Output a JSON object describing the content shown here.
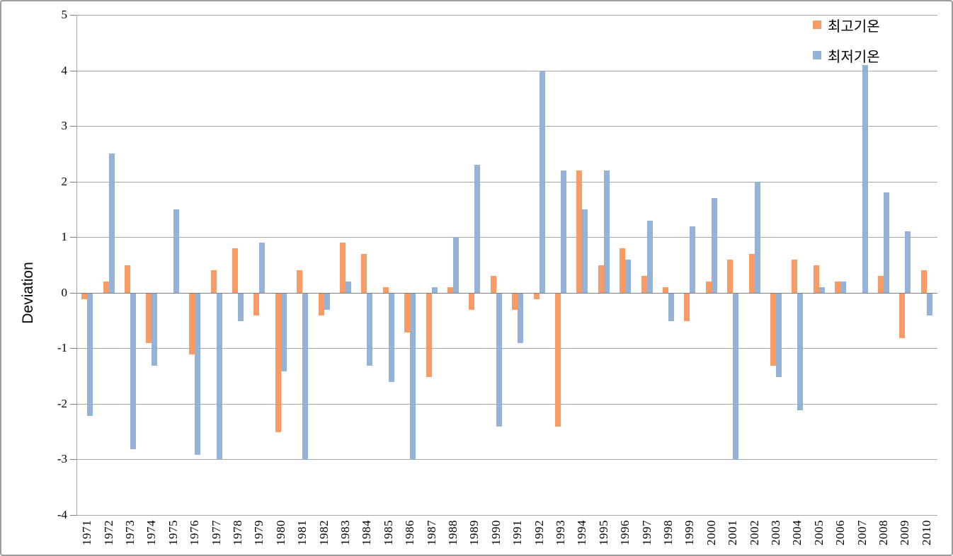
{
  "colors": {
    "grid": "#A6A6A6",
    "axis_zero": "#7F7F7F",
    "frame_border": "#9C9C9C",
    "series_max": "#FA9A64",
    "series_min": "#95B3D7"
  },
  "axis": {
    "ylabel": "Deviation"
  },
  "legend": {
    "position": "top-right",
    "items": [
      "최고기온",
      "최저기온"
    ]
  },
  "chart_data": {
    "type": "bar",
    "title": "",
    "xlabel": "",
    "ylabel": "Deviation",
    "ylim": [
      -4,
      5
    ],
    "ytick_step": 1,
    "grid": true,
    "legend_position": "top-right",
    "categories": [
      "1971",
      "1972",
      "1973",
      "1974",
      "1975",
      "1976",
      "1977",
      "1978",
      "1979",
      "1980",
      "1981",
      "1982",
      "1983",
      "1984",
      "1985",
      "1986",
      "1987",
      "1988",
      "1989",
      "1990",
      "1991",
      "1992",
      "1993",
      "1994",
      "1995",
      "1996",
      "1997",
      "1998",
      "1999",
      "2000",
      "2001",
      "2002",
      "2003",
      "2004",
      "2005",
      "2006",
      "2007",
      "2008",
      "2009",
      "2010"
    ],
    "series": [
      {
        "name": "최고기온",
        "color": "#FA9A64",
        "values": [
          -0.1,
          0.2,
          0.5,
          -0.9,
          0,
          -1.1,
          0.4,
          0.8,
          -0.4,
          -2.5,
          0.4,
          -0.4,
          0.9,
          0.7,
          0.1,
          -0.7,
          -1.5,
          0.1,
          -0.3,
          0.3,
          -0.3,
          -0.1,
          -2.4,
          2.2,
          0.5,
          0.8,
          0.3,
          0.1,
          -0.5,
          0.2,
          0.6,
          0.7,
          -1.3,
          0.6,
          0.5,
          0.2,
          0,
          0.3,
          -0.8,
          0.4
        ]
      },
      {
        "name": "최저기온",
        "color": "#95B3D7",
        "values": [
          -2.2,
          2.5,
          -2.8,
          -1.3,
          1.5,
          -2.9,
          -3.0,
          -0.5,
          0.9,
          -1.4,
          -3.0,
          -0.3,
          0.2,
          -1.3,
          -1.6,
          -3.0,
          0.1,
          1.0,
          2.3,
          -2.4,
          -0.9,
          4.0,
          2.2,
          1.5,
          2.2,
          0.6,
          1.3,
          -0.5,
          1.2,
          1.7,
          -3.0,
          2.0,
          -1.5,
          -2.1,
          0.1,
          0.2,
          4.1,
          1.8,
          1.1,
          -0.4
        ]
      }
    ]
  }
}
